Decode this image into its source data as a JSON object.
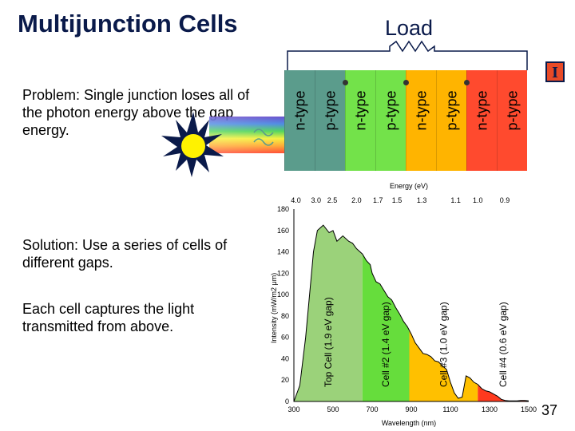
{
  "slide": {
    "title": "Multijunction Cells",
    "load_label": "Load",
    "problem_text": "Problem:  Single junction loses all of the photon energy above the gap energy.",
    "solution_text": "Solution:  Use a series of cells of different gaps.",
    "capture_text": "Each cell captures the light transmitted from above.",
    "slide_number": "37",
    "logo_glyph": "I"
  },
  "cell_stack": {
    "layers": [
      {
        "label": "n-type",
        "color": "#5b9c8c"
      },
      {
        "label": "p-type",
        "color": "#5b9c8c"
      },
      {
        "label": "n-type",
        "color": "#73e24a"
      },
      {
        "label": "p-type",
        "color": "#73e24a"
      },
      {
        "label": "n-type",
        "color": "#ffb400"
      },
      {
        "label": "p-type",
        "color": "#ffb400"
      },
      {
        "label": "n-type",
        "color": "#ff4a2e"
      },
      {
        "label": "p-type",
        "color": "#ff4a2e"
      }
    ]
  },
  "chart_data": {
    "type": "area",
    "xlabel": "Wavelength (nm)",
    "ylabel": "Intensity (mW/m2 μm)",
    "top_axis_label": "Energy (eV)",
    "top_ticks": [
      "4.0",
      "3.0",
      "2.5",
      "2.0",
      "1.7",
      "1.5",
      "1.3",
      "1.1",
      "1.0",
      "0.9"
    ],
    "x_ticks": [
      "300",
      "500",
      "700",
      "900",
      "1100",
      "1300",
      "1500"
    ],
    "y_ticks": [
      "0",
      "20",
      "40",
      "60",
      "80",
      "100",
      "120",
      "140",
      "160",
      "180"
    ],
    "xlim": [
      300,
      1500
    ],
    "ylim": [
      0,
      180
    ],
    "cells": [
      {
        "name": "Top Cell (1.9 eV gap)",
        "color": "#9bd27a",
        "x_range": [
          300,
          650
        ]
      },
      {
        "name": "Cell #2 (1.4 eV gap)",
        "color": "#66dd3c",
        "x_range": [
          650,
          890
        ]
      },
      {
        "name": "Cell #3 (1.0 eV gap)",
        "color": "#ffc000",
        "x_range": [
          890,
          1240
        ]
      },
      {
        "name": "Cell #4 (0.6 eV gap)",
        "color": "#ff3a1e",
        "x_range": [
          1240,
          1500
        ]
      }
    ],
    "spectrum": {
      "x": [
        300,
        330,
        360,
        390,
        400,
        420,
        450,
        480,
        500,
        520,
        550,
        580,
        600,
        620,
        650,
        670,
        690,
        700,
        720,
        740,
        760,
        780,
        800,
        820,
        840,
        860,
        880,
        900,
        920,
        940,
        960,
        980,
        1000,
        1020,
        1040,
        1060,
        1080,
        1100,
        1120,
        1140,
        1160,
        1180,
        1200,
        1220,
        1240,
        1260,
        1280,
        1300,
        1320,
        1340,
        1360,
        1380,
        1400,
        1420,
        1440,
        1460,
        1480,
        1500
      ],
      "y": [
        0,
        15,
        60,
        120,
        140,
        160,
        165,
        158,
        160,
        150,
        155,
        150,
        148,
        143,
        138,
        132,
        128,
        120,
        112,
        110,
        104,
        98,
        95,
        88,
        82,
        75,
        70,
        63,
        55,
        50,
        45,
        44,
        42,
        38,
        37,
        33,
        30,
        18,
        8,
        3,
        4,
        24,
        22,
        18,
        16,
        12,
        10,
        9,
        7,
        5,
        2,
        1,
        0.5,
        0.5,
        0.5,
        1,
        1,
        0.5
      ]
    }
  }
}
